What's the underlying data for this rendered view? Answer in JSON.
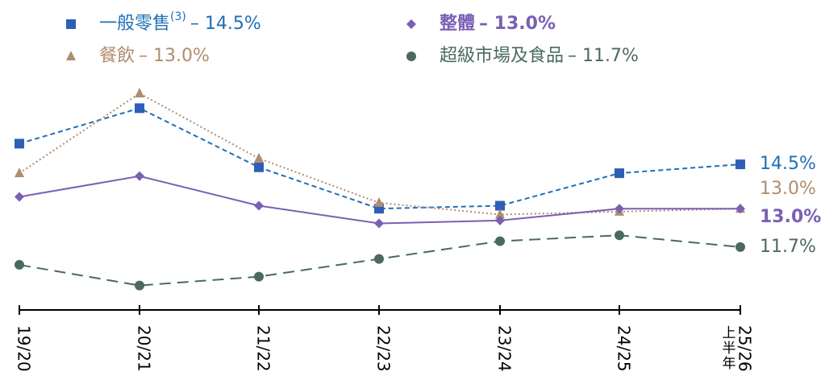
{
  "chart_data": {
    "type": "line",
    "categories": [
      "19/20",
      "20/21",
      "21/22",
      "22/23",
      "23/24",
      "24/25",
      "25/26"
    ],
    "last_category_note": "上半年",
    "ylim": [
      9.6,
      17.5
    ],
    "series": [
      {
        "name": "一般零售",
        "name_note": "(3)",
        "legend_value": "– 14.5%",
        "color": "#1f6fb5",
        "marker_color": "#2e5fb8",
        "marker": "square",
        "dash": "6,4",
        "values": [
          15.2,
          16.4,
          14.4,
          13.0,
          13.1,
          14.2,
          14.5
        ],
        "value_labels": [
          null,
          null,
          null,
          null,
          null,
          null,
          "14.5%"
        ]
      },
      {
        "name": "餐飲",
        "legend_value": "– 13.0%",
        "color": "#b08d6e",
        "marker_color": "#b08d6e",
        "marker": "triangle",
        "dash": "2,3",
        "values": [
          14.2,
          16.9,
          14.7,
          13.2,
          12.8,
          12.9,
          13.0
        ],
        "value_labels": [
          null,
          null,
          null,
          null,
          null,
          null,
          "13.0%"
        ]
      },
      {
        "name": "整體",
        "legend_value": "– 13.0%",
        "color": "#7a5fb5",
        "marker_color": "#7a5fb5",
        "marker": "diamond",
        "dash": "none",
        "bold": true,
        "values": [
          13.4,
          14.1,
          13.1,
          12.5,
          12.6,
          13.0,
          13.0
        ],
        "value_labels": [
          null,
          null,
          null,
          null,
          null,
          null,
          "13.0%"
        ]
      },
      {
        "name": "超級市場及食品",
        "legend_value": "– 11.7%",
        "color": "#4a6a5e",
        "marker_color": "#4a6a5e",
        "marker": "circle",
        "dash": "14,8",
        "values": [
          11.1,
          10.4,
          10.7,
          11.3,
          11.9,
          12.1,
          11.7
        ],
        "value_labels": [
          null,
          null,
          null,
          null,
          null,
          null,
          "11.7%"
        ]
      }
    ]
  }
}
